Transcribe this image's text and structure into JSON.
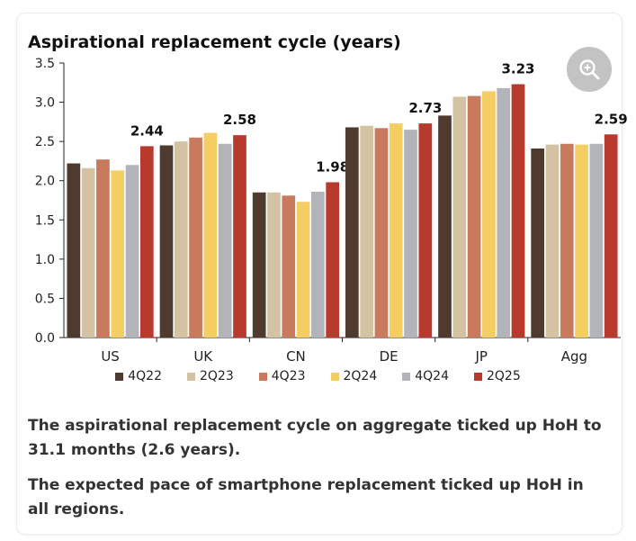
{
  "title": "Aspirational replacement cycle (years)",
  "chart_data": {
    "type": "bar",
    "categories": [
      "US",
      "UK",
      "CN",
      "DE",
      "JP",
      "Agg"
    ],
    "series": [
      {
        "name": "4Q22",
        "color": "#4e3a2e",
        "values": [
          2.22,
          2.45,
          1.85,
          2.68,
          2.83,
          2.41
        ]
      },
      {
        "name": "2Q23",
        "color": "#d3c3a3",
        "values": [
          2.16,
          2.5,
          1.85,
          2.7,
          3.07,
          2.46
        ]
      },
      {
        "name": "4Q23",
        "color": "#c97a5d",
        "values": [
          2.27,
          2.55,
          1.81,
          2.67,
          3.08,
          2.47
        ]
      },
      {
        "name": "2Q24",
        "color": "#f4cd63",
        "values": [
          2.13,
          2.61,
          1.73,
          2.73,
          3.14,
          2.46
        ]
      },
      {
        "name": "4Q24",
        "color": "#b3b4b9",
        "values": [
          2.2,
          2.47,
          1.86,
          2.65,
          3.18,
          2.47
        ]
      },
      {
        "name": "2Q25",
        "color": "#b73a2c",
        "values": [
          2.44,
          2.58,
          1.98,
          2.73,
          3.23,
          2.59
        ]
      }
    ],
    "data_labels": [
      "2.44",
      "2.58",
      "1.98",
      "2.73",
      "3.23",
      "2.59"
    ],
    "ylim": [
      0,
      3.5
    ],
    "yticks": [
      "0.0",
      "0.5",
      "1.0",
      "1.5",
      "2.0",
      "2.5",
      "3.0",
      "3.5"
    ],
    "xlabel": "",
    "ylabel": "",
    "grid": false,
    "legend_position": "bottom"
  },
  "captions": [
    "The aspirational replacement cycle on aggregate ticked up HoH to 31.1 months (2.6 years).",
    "The expected pace of smartphone replacement ticked up HoH in all regions."
  ],
  "zoom_icon": "zoom-in-icon"
}
